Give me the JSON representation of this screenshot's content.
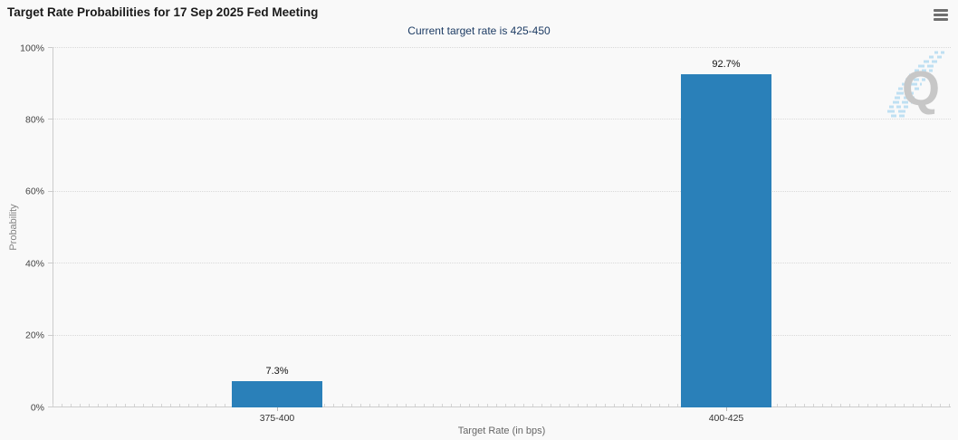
{
  "header": {
    "title": "Target Rate Probabilities for 17 Sep 2025 Fed Meeting",
    "subtitle": "Current target rate is 425-450"
  },
  "menu": {
    "icon": "hamburger-icon"
  },
  "watermark": {
    "letter": "Q"
  },
  "colors": {
    "bar": "#2a80b9",
    "subtitle_text": "#1d3c64",
    "axis_line": "#cccccc",
    "gridline": "#d9d9d9",
    "watermark_gray": "#c7c7c7",
    "watermark_blue": "#bfe0f2"
  },
  "chart_data": {
    "type": "bar",
    "title": "Target Rate Probabilities for 17 Sep 2025 Fed Meeting",
    "subtitle": "Current target rate is 425-450",
    "categories": [
      "375-400",
      "400-425"
    ],
    "values": [
      7.3,
      92.7
    ],
    "value_labels": [
      "7.3%",
      "92.7%"
    ],
    "xlabel": "Target Rate (in bps)",
    "ylabel": "Probability",
    "ylim": [
      0,
      100
    ],
    "yticks": [
      "0%",
      "20%",
      "40%",
      "60%",
      "80%",
      "100%"
    ],
    "grid": "horizontal-dotted",
    "legend": "none",
    "bar_color": "#2a80b9"
  }
}
